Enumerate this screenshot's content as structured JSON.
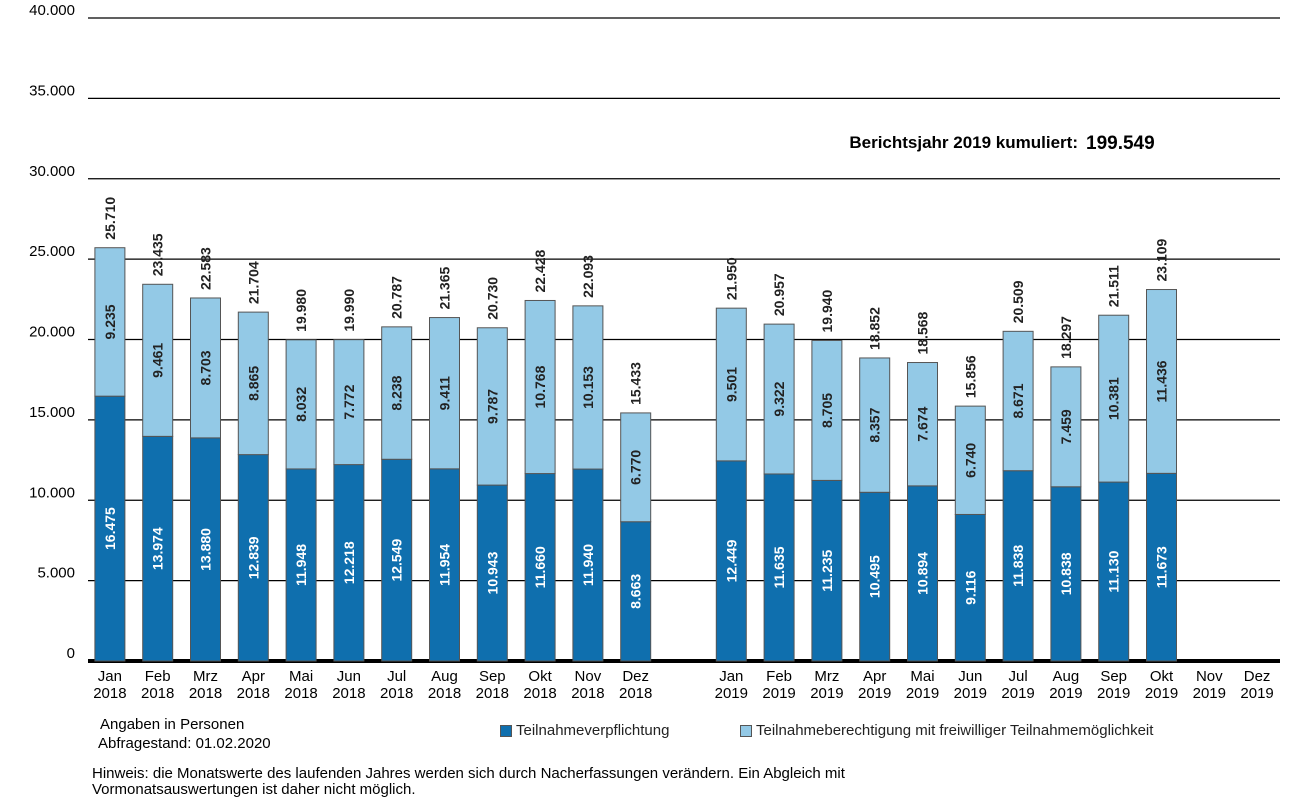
{
  "chart_data": {
    "type": "stacked-bar",
    "annotation": "Berichtsjahr 2019 kumuliert:",
    "annotation_value": 199549,
    "annotation_value_label": "199.549",
    "notes": [
      "Angaben in Personen",
      "Abfragestand:  01.02.2020",
      "Hinweis: die Monatswerte des laufenden Jahres werden sich durch Nacherfassungen  verändern. Ein Abgleich mit",
      "Vormonatsauswertungen ist daher nicht möglich."
    ],
    "categories": [
      "Jan 2018",
      "Feb 2018",
      "Mrz 2018",
      "Apr 2018",
      "Mai 2018",
      "Jun 2018",
      "Jul 2018",
      "Aug 2018",
      "Sep 2018",
      "Okt 2018",
      "Nov 2018",
      "Dez 2018",
      null,
      "Jan 2019",
      "Feb 2019",
      "Mrz 2019",
      "Apr 2019",
      "Mai 2019",
      "Jun 2019",
      "Jul 2019",
      "Aug 2019",
      "Sep 2019",
      "Okt 2019",
      "Nov 2019",
      "Dez 2019"
    ],
    "series": [
      {
        "name": "Teilnahmeverpflichtung",
        "color": "#0f6fae",
        "values": [
          16475,
          13974,
          13880,
          12839,
          11948,
          12218,
          12549,
          11954,
          10943,
          11660,
          11940,
          8663,
          null,
          12449,
          11635,
          11235,
          10495,
          10894,
          9116,
          11838,
          10838,
          11130,
          11673,
          null,
          null
        ],
        "value_labels": [
          "16.475",
          "13.974",
          "13.880",
          "12.839",
          "11.948",
          "12.218",
          "12.549",
          "11.954",
          "10.943",
          "11.660",
          "11.940",
          "8.663",
          null,
          "12.449",
          "11.635",
          "11.235",
          "10.495",
          "10.894",
          "9.116",
          "11.838",
          "10.838",
          "11.130",
          "11.673",
          null,
          null
        ]
      },
      {
        "name": "Teilnahmeberechtigung mit freiwilliger Teilnahmemöglichkeit",
        "color": "#93c9e6",
        "values": [
          9235,
          9461,
          8703,
          8865,
          8032,
          7772,
          8238,
          9411,
          9787,
          10768,
          10153,
          6770,
          null,
          9501,
          9322,
          8705,
          8357,
          7674,
          6740,
          8671,
          7459,
          10381,
          11436,
          null,
          null
        ],
        "value_labels": [
          "9.235",
          "9.461",
          "8.703",
          "8.865",
          "8.032",
          "7.772",
          "8.238",
          "9.411",
          "9.787",
          "10.768",
          "10.153",
          "6.770",
          null,
          "9.501",
          "9.322",
          "8.705",
          "8.357",
          "7.674",
          "6.740",
          "8.671",
          "7.459",
          "10.381",
          "11.436",
          null,
          null
        ]
      }
    ],
    "totals": {
      "values": [
        25710,
        23435,
        22583,
        21704,
        19980,
        19990,
        20787,
        21365,
        20730,
        22428,
        22093,
        15433,
        null,
        21950,
        20957,
        19940,
        18852,
        18568,
        15856,
        20509,
        18297,
        21511,
        23109,
        null,
        null
      ],
      "value_labels": [
        "25.710",
        "23.435",
        "22.583",
        "21.704",
        "19.980",
        "19.990",
        "20.787",
        "21.365",
        "20.730",
        "22.428",
        "22.093",
        "15.433",
        null,
        "21.950",
        "20.957",
        "19.940",
        "18.852",
        "18.568",
        "15.856",
        "20.509",
        "18.297",
        "21.511",
        "23.109",
        null,
        null
      ]
    },
    "ylim": [
      0,
      40000
    ],
    "yticks": [
      0,
      {
        "value": 5000,
        "label": "5.000"
      },
      {
        "value": 10000,
        "label": "10.000"
      },
      {
        "value": 15000,
        "label": "15.000"
      },
      {
        "value": 20000,
        "label": "20.000"
      },
      {
        "value": 25000,
        "label": "25.000"
      },
      {
        "value": 30000,
        "label": "30.000"
      },
      {
        "value": 35000,
        "label": "35.000"
      },
      {
        "value": 40000,
        "label": "40.000"
      }
    ],
    "grid": true
  }
}
